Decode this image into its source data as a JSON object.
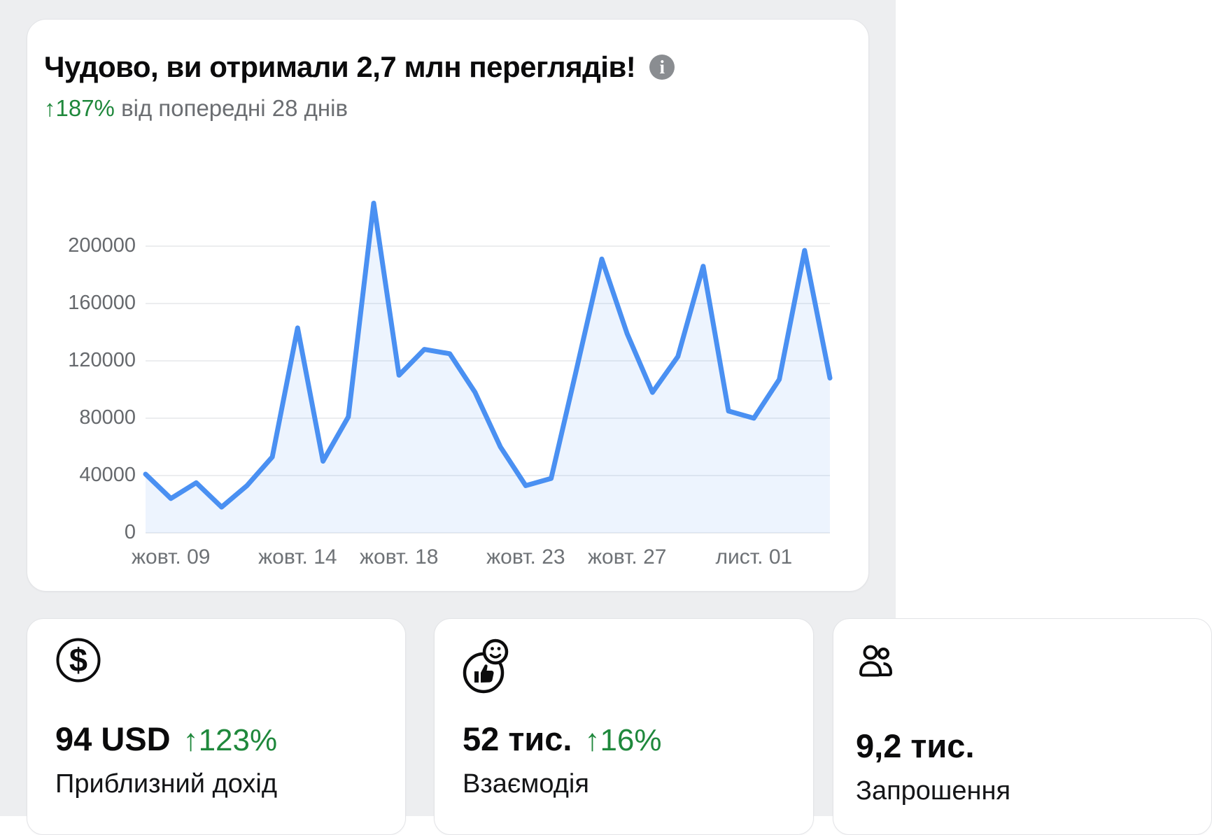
{
  "header": {
    "title": "Чудово, ви отримали 2,7 млн переглядів!",
    "info_icon": "i",
    "trend_percent": "↑187%",
    "trend_caption": "від попередні 28 днів"
  },
  "chart_data": {
    "type": "area",
    "values": [
      41000,
      24000,
      35000,
      18000,
      33000,
      53000,
      143000,
      50000,
      81000,
      230000,
      110000,
      128000,
      125000,
      98000,
      60000,
      33000,
      38000,
      114000,
      191000,
      139000,
      98000,
      123000,
      186000,
      85000,
      80000,
      107000,
      197000,
      108000
    ],
    "x_tick_labels": [
      {
        "index": 1,
        "label": "жовт. 09"
      },
      {
        "index": 6,
        "label": "жовт. 14"
      },
      {
        "index": 10,
        "label": "жовт. 18"
      },
      {
        "index": 15,
        "label": "жовт. 23"
      },
      {
        "index": 19,
        "label": "жовт. 27"
      },
      {
        "index": 24,
        "label": "лист. 01"
      }
    ],
    "y_ticks": [
      0,
      40000,
      80000,
      120000,
      160000,
      200000
    ],
    "ylim": [
      0,
      235000
    ],
    "grid": true,
    "legend": false,
    "line_color": "#4a90f2",
    "fill_color": "rgba(74,144,242,0.10)",
    "grid_color": "#e5e7ea"
  },
  "cards": [
    {
      "icon": "dollar-circle-icon",
      "value": "94 USD",
      "trend": "↑123%",
      "label": "Приблизний дохід"
    },
    {
      "icon": "reactions-icon",
      "value": "52 тис.",
      "trend": "↑16%",
      "label": "Взаємодія"
    },
    {
      "icon": "people-icon",
      "value": "9,2 тис.",
      "label": "Запрошення"
    }
  ]
}
